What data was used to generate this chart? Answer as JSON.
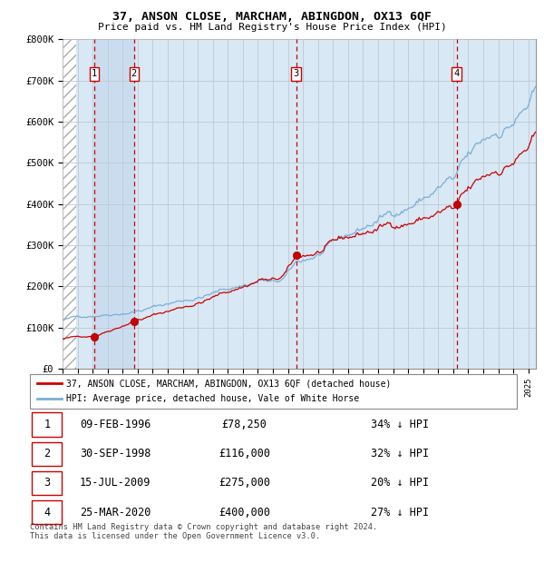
{
  "title": "37, ANSON CLOSE, MARCHAM, ABINGDON, OX13 6QF",
  "subtitle": "Price paid vs. HM Land Registry's House Price Index (HPI)",
  "legend_line1": "37, ANSON CLOSE, MARCHAM, ABINGDON, OX13 6QF (detached house)",
  "legend_line2": "HPI: Average price, detached house, Vale of White Horse",
  "footnote1": "Contains HM Land Registry data © Crown copyright and database right 2024.",
  "footnote2": "This data is licensed under the Open Government Licence v3.0.",
  "sale_points": [
    {
      "label": "1",
      "date": "09-FEB-1996",
      "price": 78250,
      "price_str": "£78,250",
      "pct": "34% ↓ HPI",
      "x_year": 1996.11
    },
    {
      "label": "2",
      "date": "30-SEP-1998",
      "price": 116000,
      "price_str": "£116,000",
      "pct": "32% ↓ HPI",
      "x_year": 1998.75
    },
    {
      "label": "3",
      "date": "15-JUL-2009",
      "price": 275000,
      "price_str": "£275,000",
      "pct": "20% ↓ HPI",
      "x_year": 2009.54
    },
    {
      "label": "4",
      "date": "25-MAR-2020",
      "price": 400000,
      "price_str": "£400,000",
      "pct": "27% ↓ HPI",
      "x_year": 2020.23
    }
  ],
  "x_start": 1994.0,
  "x_end": 2025.5,
  "y_min": 0,
  "y_max": 800000,
  "y_ticks": [
    0,
    100000,
    200000,
    300000,
    400000,
    500000,
    600000,
    700000,
    800000
  ],
  "x_ticks": [
    1994,
    1995,
    1996,
    1997,
    1998,
    1999,
    2000,
    2001,
    2002,
    2003,
    2004,
    2005,
    2006,
    2007,
    2008,
    2009,
    2010,
    2011,
    2012,
    2013,
    2014,
    2015,
    2016,
    2017,
    2018,
    2019,
    2020,
    2021,
    2022,
    2023,
    2024,
    2025
  ],
  "hpi_color": "#7AAFD4",
  "sale_color": "#CC0000",
  "vline_color": "#CC0000",
  "shade_color": "#D8E8F5",
  "hatch_color": "#AAAAAA",
  "grid_color": "#C0C8D0",
  "background_color": "#D8E8F5"
}
